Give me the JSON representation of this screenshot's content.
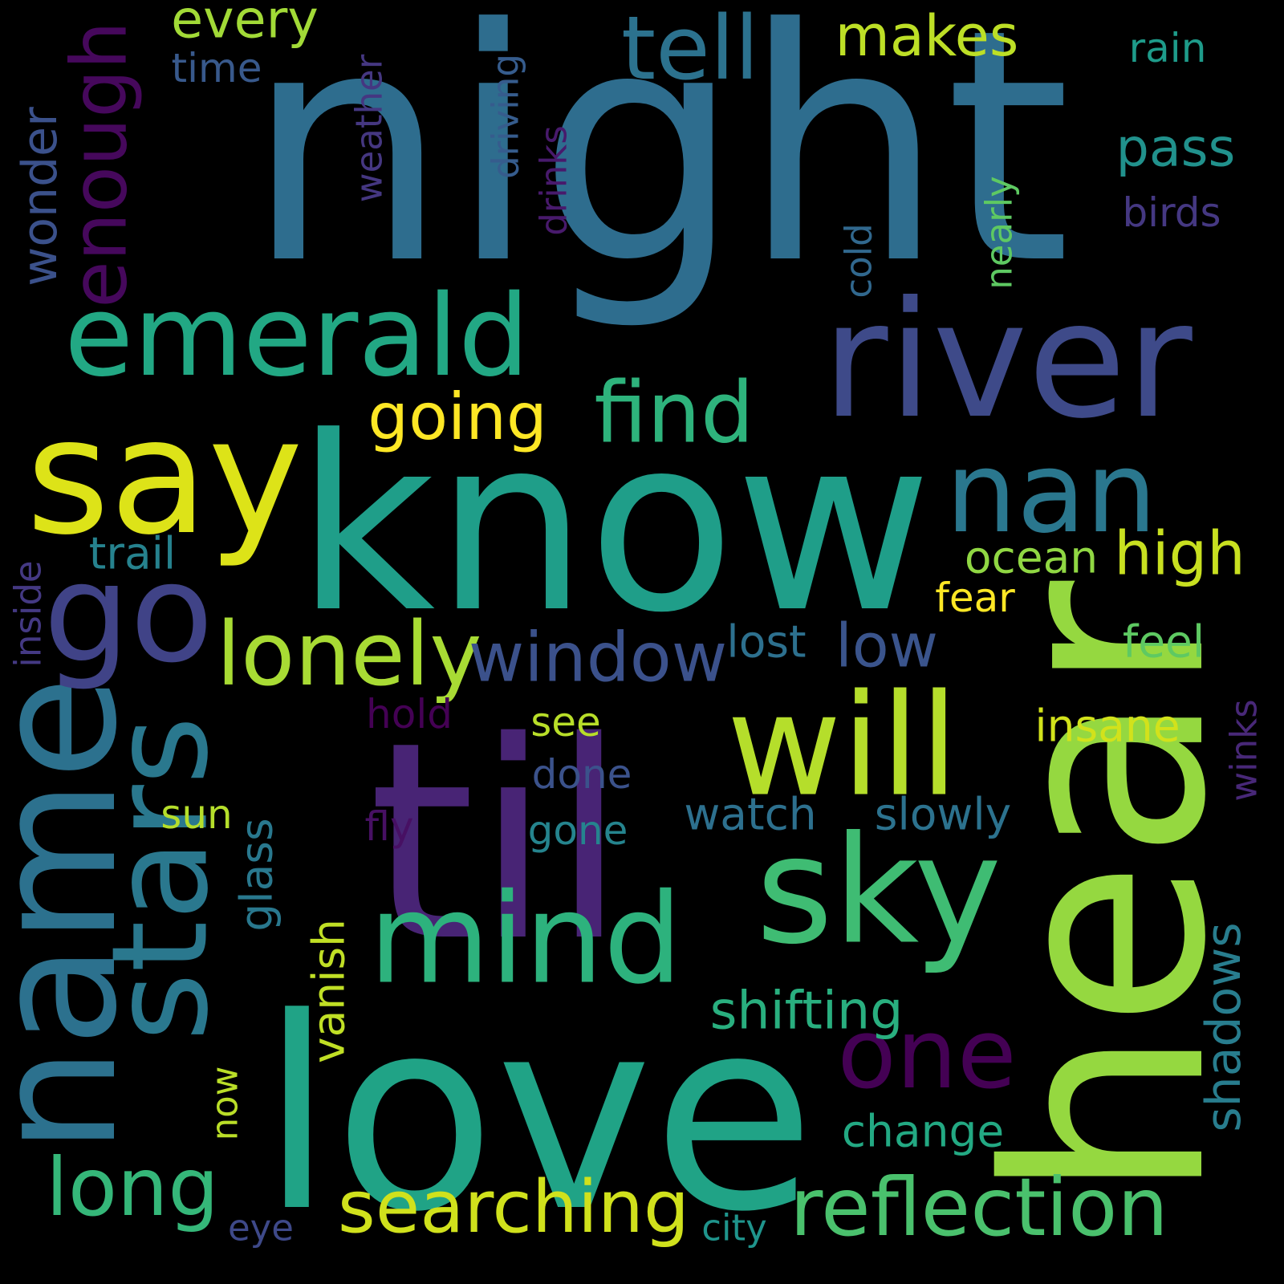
{
  "background": "#000000",
  "words": [
    {
      "id": "night",
      "text": "night",
      "color": "#2e6d8e",
      "rot": 0
    },
    {
      "id": "know",
      "text": "know",
      "color": "#1f9e89",
      "rot": 0
    },
    {
      "id": "til",
      "text": "til",
      "color": "#482475",
      "rot": 0
    },
    {
      "id": "love",
      "text": "love",
      "color": "#20a386",
      "rot": 0
    },
    {
      "id": "hear",
      "text": "hear",
      "color": "#95d840",
      "rot": -90
    },
    {
      "id": "river",
      "text": "river",
      "color": "#3e4a89",
      "rot": 0
    },
    {
      "id": "say",
      "text": "say",
      "color": "#dde318",
      "rot": 0
    },
    {
      "id": "name",
      "text": "name",
      "color": "#2c718e",
      "rot": -90
    },
    {
      "id": "go",
      "text": "go",
      "color": "#404387",
      "rot": 0
    },
    {
      "id": "emerald",
      "text": "emerald",
      "color": "#22a884",
      "rot": 0
    },
    {
      "id": "stars",
      "text": "stars",
      "color": "#2a788e",
      "rot": -90
    },
    {
      "id": "sky",
      "text": "sky",
      "color": "#3fbc73",
      "rot": 0
    },
    {
      "id": "will",
      "text": "will",
      "color": "#b5de2b",
      "rot": 0
    },
    {
      "id": "mind",
      "text": "mind",
      "color": "#2db27d",
      "rot": 0
    },
    {
      "id": "nan",
      "text": "nan",
      "color": "#2a778e",
      "rot": 0
    },
    {
      "id": "lonely",
      "text": "lonely",
      "color": "#a8db34",
      "rot": 0
    },
    {
      "id": "tell",
      "text": "tell",
      "color": "#2c728e",
      "rot": 0
    },
    {
      "id": "find",
      "text": "find",
      "color": "#2eb37c",
      "rot": 0
    },
    {
      "id": "one",
      "text": "one",
      "color": "#440154",
      "rot": 0
    },
    {
      "id": "long",
      "text": "long",
      "color": "#35b779",
      "rot": 0
    },
    {
      "id": "reflection",
      "text": "reflection",
      "color": "#4ac16d",
      "rot": 0
    },
    {
      "id": "searching",
      "text": "searching",
      "color": "#d0e11c",
      "rot": 0
    },
    {
      "id": "enough",
      "text": "enough",
      "color": "#46085c",
      "rot": -90
    },
    {
      "id": "going",
      "text": "going",
      "color": "#fde725",
      "rot": 0
    },
    {
      "id": "window",
      "text": "window",
      "color": "#3b518b",
      "rot": 0
    },
    {
      "id": "high",
      "text": "high",
      "color": "#c8e020",
      "rot": 0
    },
    {
      "id": "low",
      "text": "low",
      "color": "#3a548c",
      "rot": 0
    },
    {
      "id": "makes",
      "text": "makes",
      "color": "#bddf26",
      "rot": 0
    },
    {
      "id": "pass",
      "text": "pass",
      "color": "#21918c",
      "rot": 0
    },
    {
      "id": "every",
      "text": "every",
      "color": "#a2da37",
      "rot": 0
    },
    {
      "id": "shifting",
      "text": "shifting",
      "color": "#29af7f",
      "rot": 0
    },
    {
      "id": "shadows",
      "text": "shadows",
      "color": "#287d8e",
      "rot": -90
    },
    {
      "id": "wonder",
      "text": "wonder",
      "color": "#3b518b",
      "rot": -90
    },
    {
      "id": "slowly",
      "text": "slowly",
      "color": "#2c728e",
      "rot": 0
    },
    {
      "id": "watch",
      "text": "watch",
      "color": "#2d708e",
      "rot": 0
    },
    {
      "id": "ocean",
      "text": "ocean",
      "color": "#90d743",
      "rot": 0
    },
    {
      "id": "change",
      "text": "change",
      "color": "#23a983",
      "rot": 0
    },
    {
      "id": "lost",
      "text": "lost",
      "color": "#2d708e",
      "rot": 0
    },
    {
      "id": "insane",
      "text": "insane",
      "color": "#d2e21b",
      "rot": 0
    },
    {
      "id": "feel",
      "text": "feel",
      "color": "#5ec962",
      "rot": 0
    },
    {
      "id": "trail",
      "text": "trail",
      "color": "#26828e",
      "rot": 0
    },
    {
      "id": "glass",
      "text": "glass",
      "color": "#29788e",
      "rot": -90
    },
    {
      "id": "vanish",
      "text": "vanish",
      "color": "#c0df25",
      "rot": -90
    },
    {
      "id": "weather",
      "text": "weather",
      "color": "#453781",
      "rot": -90
    },
    {
      "id": "driving",
      "text": "driving",
      "color": "#365c8d",
      "rot": -90
    },
    {
      "id": "drinks",
      "text": "drinks",
      "color": "#481a6c",
      "rot": -90
    },
    {
      "id": "nearly",
      "text": "nearly",
      "color": "#5ec962",
      "rot": -90
    },
    {
      "id": "cold",
      "text": "cold",
      "color": "#31688e",
      "rot": -90
    },
    {
      "id": "birds",
      "text": "birds",
      "color": "#453882",
      "rot": 0
    },
    {
      "id": "rain",
      "text": "rain",
      "color": "#1e9b8a",
      "rot": 0
    },
    {
      "id": "time",
      "text": "time",
      "color": "#38598c",
      "rot": 0
    },
    {
      "id": "fear",
      "text": "fear",
      "color": "#fde725",
      "rot": 0
    },
    {
      "id": "hold",
      "text": "hold",
      "color": "#440154",
      "rot": 0
    },
    {
      "id": "see",
      "text": "see",
      "color": "#b8de29",
      "rot": 0
    },
    {
      "id": "done",
      "text": "done",
      "color": "#3b528b",
      "rot": 0
    },
    {
      "id": "sun",
      "text": "sun",
      "color": "#b5de2b",
      "rot": 0
    },
    {
      "id": "fly",
      "text": "fly",
      "color": "#471063",
      "rot": 0
    },
    {
      "id": "gone",
      "text": "gone",
      "color": "#25848e",
      "rot": 0
    },
    {
      "id": "inside",
      "text": "inside",
      "color": "#443983",
      "rot": -90
    },
    {
      "id": "winks",
      "text": "winks",
      "color": "#482878",
      "rot": -90
    },
    {
      "id": "now",
      "text": "now",
      "color": "#bade28",
      "rot": -90
    },
    {
      "id": "eye",
      "text": "eye",
      "color": "#3e4989",
      "rot": 0
    },
    {
      "id": "city",
      "text": "city",
      "color": "#1f948c",
      "rot": 0
    }
  ]
}
